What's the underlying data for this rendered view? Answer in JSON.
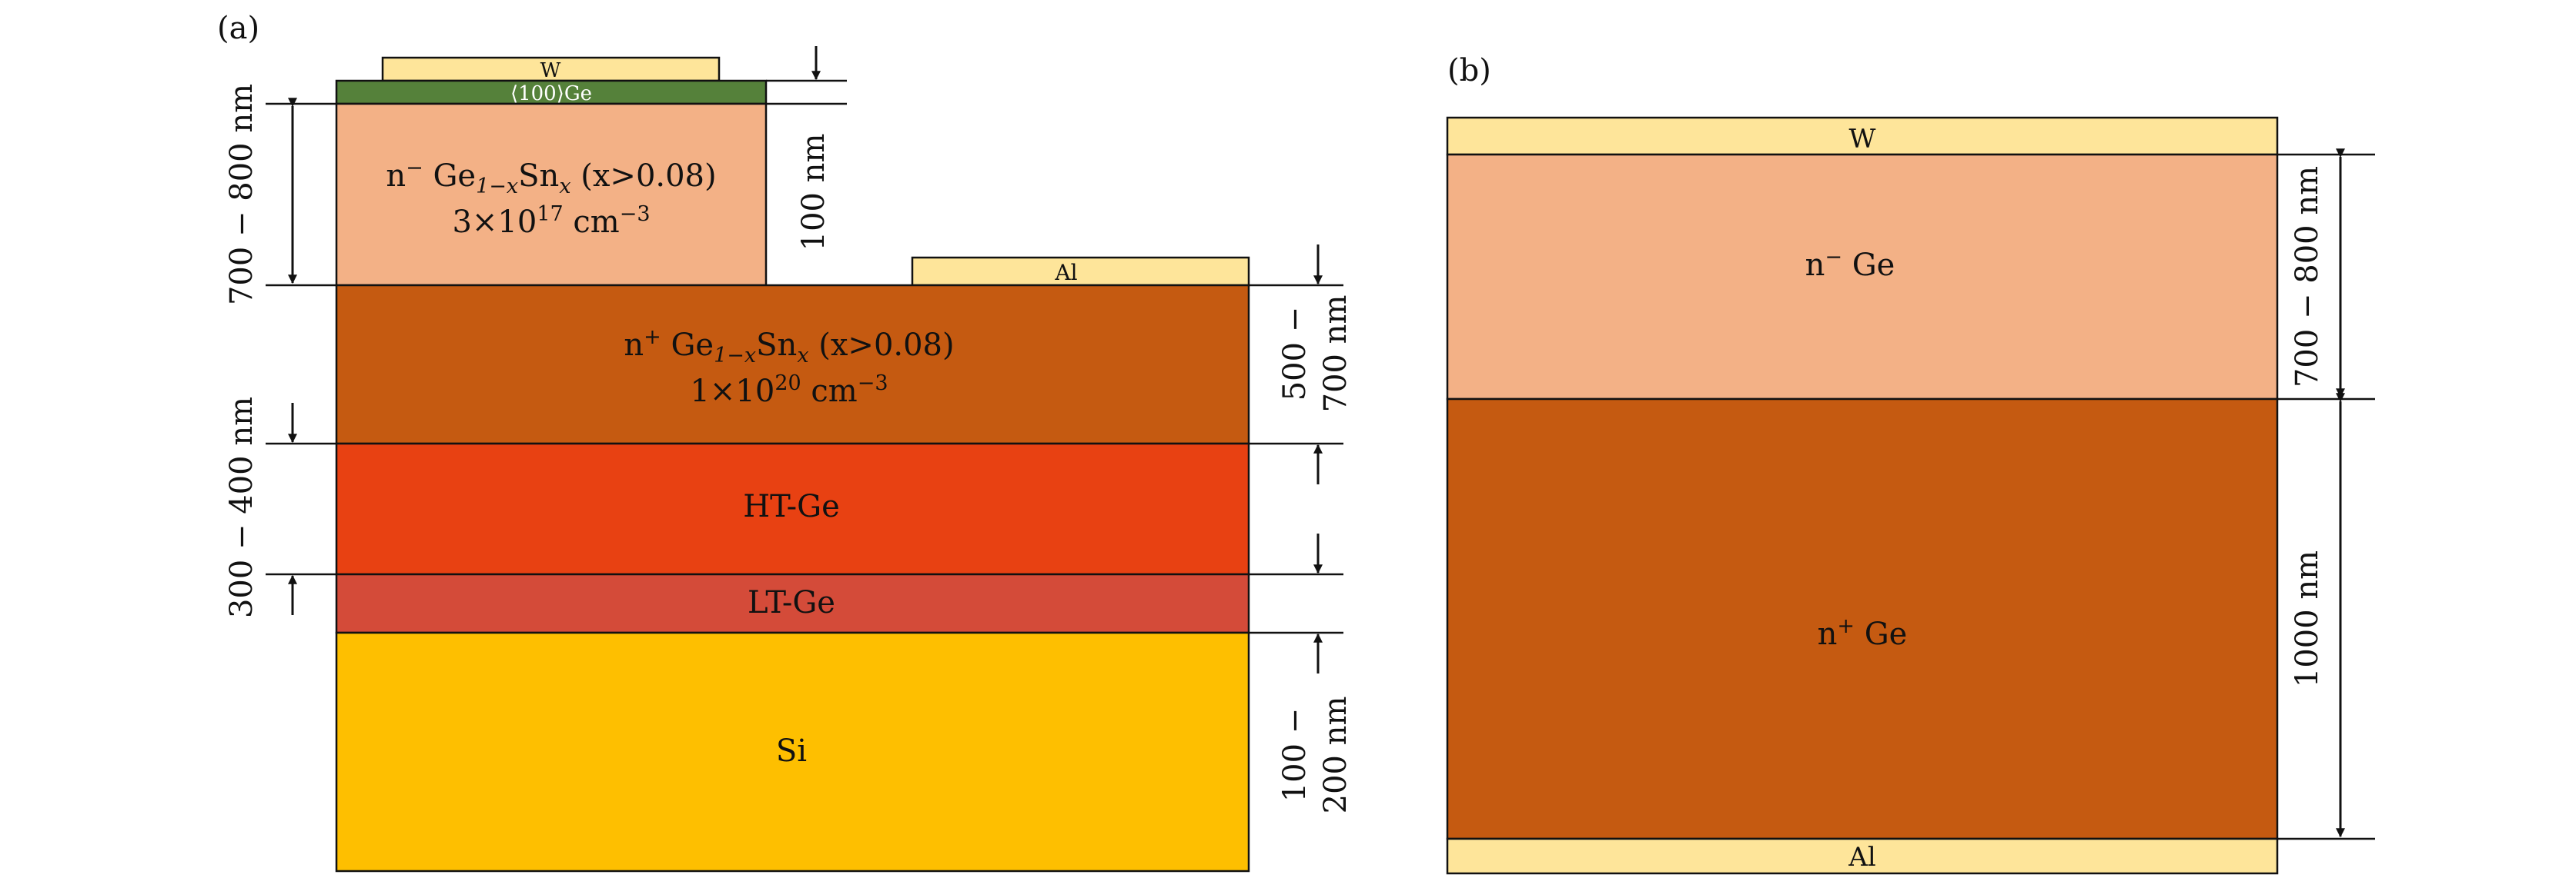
{
  "panel_a": {
    "label": "(a)",
    "layers": {
      "w_contact": "W",
      "ge_cap": "⟨100⟩Ge",
      "n_minus": {
        "prefix": "n",
        "prefix_sup": "−",
        "mid": " Ge",
        "sub1": "1−x",
        "mid2": "Sn",
        "sub2": "x",
        "suffix": " (x>0.08)",
        "doping": "3×10",
        "doping_exp": "17",
        "doping_unit": " cm",
        "doping_unit_exp": "−3"
      },
      "al_contact": "Al",
      "n_plus": {
        "prefix": "n",
        "prefix_sup": "+",
        "mid": " Ge",
        "sub1": "1−x",
        "mid2": "Sn",
        "sub2": "x",
        "suffix": " (x>0.08)",
        "doping": "1×10",
        "doping_exp": "20",
        "doping_unit": " cm",
        "doping_unit_exp": "−3"
      },
      "ht_ge": "HT-Ge",
      "lt_ge": "LT-Ge",
      "si": "Si"
    },
    "dimensions": {
      "n_minus_thickness": "700 − 800 nm",
      "cap_thickness": "100 nm",
      "n_plus_thickness_1": "500 −",
      "n_plus_thickness_2": "700 nm",
      "buffer_thickness": "300 − 400 nm",
      "lt_thickness_1": "100 −",
      "lt_thickness_2": "200 nm"
    }
  },
  "panel_b": {
    "label": "(b)",
    "layers": {
      "w_contact": "W",
      "n_minus": {
        "prefix": "n",
        "prefix_sup": "−",
        "suffix": " Ge"
      },
      "n_plus": {
        "prefix": "n",
        "prefix_sup": "+",
        "suffix": " Ge"
      },
      "al_contact": "Al"
    },
    "dimensions": {
      "n_minus_thickness": "700 − 800 nm",
      "n_plus_thickness": "1000 nm"
    }
  },
  "colors": {
    "contact_yellow": "#FEE59A",
    "ge_cap_green": "#55813A",
    "n_minus_peach": "#F3B186",
    "n_plus_brown": "#C55A11",
    "ht_ge_orange": "#E84112",
    "lt_ge_red": "#D44B39",
    "si_gold": "#FEBF00"
  }
}
